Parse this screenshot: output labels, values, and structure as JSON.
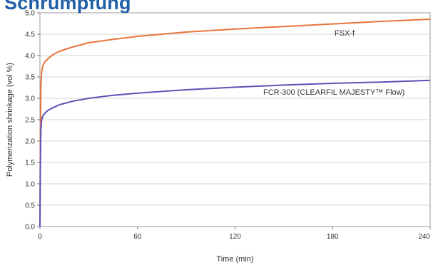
{
  "page": {
    "heading": "Schrumpfung"
  },
  "chart_data": {
    "type": "line",
    "title": "",
    "xlabel": "Time (min)",
    "ylabel": "Polymerization shrinkage (vol %)",
    "xlim": [
      0,
      240
    ],
    "ylim": [
      0,
      5
    ],
    "xticks": [
      0,
      60,
      120,
      180,
      240
    ],
    "xtick_labels": [
      "0",
      "60",
      "120",
      "180",
      "240"
    ],
    "yticks": [
      0,
      0.5,
      1,
      1.5,
      2,
      2.5,
      3,
      3.5,
      4,
      4.5,
      5
    ],
    "ytick_labels": [
      "0.0",
      "0.5",
      "1.0",
      "1.5",
      "2.0",
      "2.5",
      "3.0",
      "3.5",
      "4.0",
      "4.5",
      "5.0"
    ],
    "grid": "horizontal",
    "series": [
      {
        "name": "FSX-f",
        "color": "#e8743b",
        "x": [
          0,
          0.2,
          0.4,
          0.6,
          1,
          1.5,
          2,
          3,
          5,
          8,
          12,
          20,
          30,
          45,
          60,
          90,
          120,
          150,
          180,
          210,
          240
        ],
        "y": [
          0.0,
          1.5,
          2.6,
          3.3,
          3.6,
          3.72,
          3.78,
          3.85,
          3.93,
          4.02,
          4.1,
          4.2,
          4.3,
          4.38,
          4.45,
          4.55,
          4.62,
          4.68,
          4.74,
          4.8,
          4.85
        ]
      },
      {
        "name": "FCR-300 (CLEARFIL MAJESTY™ Flow)",
        "color": "#5b52b6",
        "x": [
          0,
          0.2,
          0.4,
          0.6,
          1,
          1.5,
          2,
          3,
          5,
          8,
          12,
          20,
          30,
          45,
          60,
          90,
          120,
          150,
          180,
          210,
          240
        ],
        "y": [
          0.0,
          1.2,
          1.9,
          2.3,
          2.48,
          2.56,
          2.6,
          2.65,
          2.72,
          2.78,
          2.85,
          2.93,
          3.0,
          3.07,
          3.12,
          3.2,
          3.26,
          3.31,
          3.35,
          3.38,
          3.42
        ]
      }
    ]
  }
}
